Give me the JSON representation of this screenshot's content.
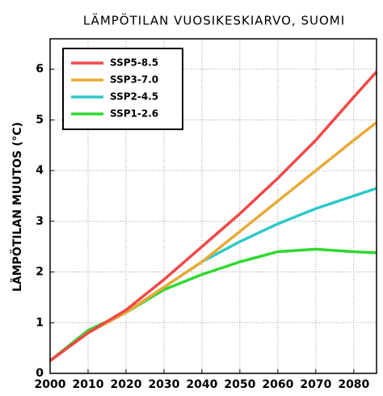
{
  "chart_data": {
    "type": "line",
    "title": "LÄMPÖTILAN VUOSIKESKIARVO, SUOMI",
    "y_label": "LÄMPÖTILAN MUUTOS (°C)",
    "x": [
      2000,
      2010,
      2020,
      2030,
      2040,
      2050,
      2060,
      2070,
      2080,
      2086
    ],
    "series": [
      {
        "name": "SSP5-8.5",
        "color": "#f04848",
        "values": [
          0.25,
          0.8,
          1.25,
          1.85,
          2.5,
          3.15,
          3.85,
          4.6,
          5.45,
          5.95
        ]
      },
      {
        "name": "SSP3-7.0",
        "color": "#e8aa38",
        "values": [
          0.25,
          0.8,
          1.2,
          1.7,
          2.2,
          2.8,
          3.4,
          4.0,
          4.6,
          4.95
        ]
      },
      {
        "name": "SSP2-4.5",
        "color": "#30c8c8",
        "values": [
          0.25,
          0.8,
          1.2,
          1.7,
          2.2,
          2.6,
          2.95,
          3.25,
          3.5,
          3.65
        ]
      },
      {
        "name": "SSP1-2.6",
        "color": "#30d830",
        "values": [
          0.25,
          0.85,
          1.2,
          1.65,
          1.95,
          2.2,
          2.4,
          2.45,
          2.4,
          2.38
        ]
      }
    ],
    "xlim": [
      2000,
      2086
    ],
    "xticks": [
      2000,
      2010,
      2020,
      2030,
      2040,
      2050,
      2060,
      2070,
      2080
    ],
    "ylim": [
      0,
      6.6
    ],
    "yticks": [
      0,
      1,
      2,
      3,
      4,
      5,
      6
    ],
    "grid": true,
    "legend": "upper left"
  }
}
